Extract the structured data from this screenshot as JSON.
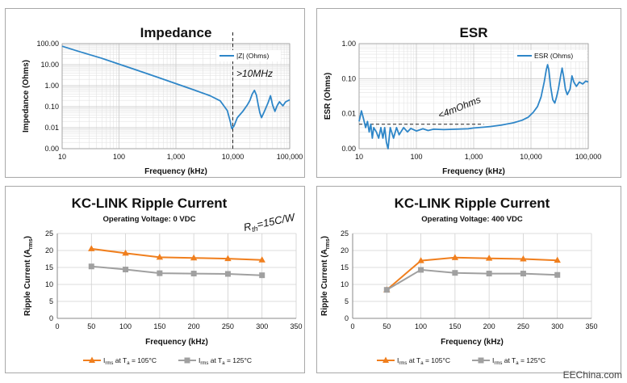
{
  "watermark": "EEChina.com",
  "chart_data": [
    {
      "type": "line",
      "title": "Impedance",
      "xlabel": "Frequency (kHz)",
      "ylabel": "Impedance (Ohms)",
      "x_scale": "log",
      "y_scale": "log",
      "xlim": [
        10,
        100000
      ],
      "ylim": [
        0.001,
        100
      ],
      "x_ticks": [
        10,
        100,
        1000,
        10000,
        100000
      ],
      "x_tick_labels": [
        "10",
        "100",
        "1,000",
        "10,000",
        "100,000"
      ],
      "y_ticks": [
        0.001,
        0.01,
        0.1,
        1,
        10,
        100
      ],
      "y_tick_labels": [
        "0.00",
        "0.01",
        "0.10",
        "1.00",
        "10.00",
        "100.00"
      ],
      "grid": true,
      "legend": "top-right",
      "series": [
        {
          "name": "|Z| (Ohms)",
          "color": "#2e86c8",
          "points": [
            [
              10,
              75
            ],
            [
              20,
              42
            ],
            [
              50,
              20
            ],
            [
              100,
              10.5
            ],
            [
              200,
              5.6
            ],
            [
              500,
              2.4
            ],
            [
              1000,
              1.25
            ],
            [
              2000,
              0.65
            ],
            [
              4000,
              0.33
            ],
            [
              6000,
              0.19
            ],
            [
              8000,
              0.065
            ],
            [
              9000,
              0.02
            ],
            [
              9600,
              0.009
            ],
            [
              10500,
              0.012
            ],
            [
              12000,
              0.03
            ],
            [
              15000,
              0.06
            ],
            [
              18000,
              0.12
            ],
            [
              20000,
              0.2
            ],
            [
              22000,
              0.4
            ],
            [
              24000,
              0.6
            ],
            [
              26000,
              0.35
            ],
            [
              28000,
              0.12
            ],
            [
              30000,
              0.05
            ],
            [
              32000,
              0.03
            ],
            [
              36000,
              0.06
            ],
            [
              42000,
              0.16
            ],
            [
              46000,
              0.33
            ],
            [
              50000,
              0.12
            ],
            [
              55000,
              0.06
            ],
            [
              60000,
              0.11
            ],
            [
              66000,
              0.17
            ],
            [
              70000,
              0.14
            ],
            [
              76000,
              0.11
            ],
            [
              85000,
              0.17
            ],
            [
              100000,
              0.21
            ]
          ]
        }
      ],
      "vline": 10000,
      "annotations": [
        ">10MHz"
      ]
    },
    {
      "type": "line",
      "title": "ESR",
      "xlabel": "Frequency (kHz)",
      "ylabel": "ESR (Ohms)",
      "x_scale": "log",
      "y_scale": "log",
      "xlim": [
        10,
        100000
      ],
      "ylim": [
        0.001,
        1
      ],
      "x_ticks": [
        10,
        100,
        1000,
        10000,
        100000
      ],
      "x_tick_labels": [
        "10",
        "100",
        "1,000",
        "10,000",
        "100,000"
      ],
      "y_ticks": [
        0.001,
        0.01,
        0.1,
        1
      ],
      "y_tick_labels": [
        "0.00",
        "0.01",
        "0.10",
        "1.00"
      ],
      "grid": true,
      "legend": "top-right",
      "series": [
        {
          "name": "ESR (Ohms)",
          "color": "#2e86c8",
          "points": [
            [
              10,
              0.006
            ],
            [
              11,
              0.012
            ],
            [
              12,
              0.007
            ],
            [
              13,
              0.004
            ],
            [
              14,
              0.006
            ],
            [
              15,
              0.003
            ],
            [
              16,
              0.005
            ],
            [
              17,
              0.002
            ],
            [
              18,
              0.004
            ],
            [
              20,
              0.003
            ],
            [
              22,
              0.002
            ],
            [
              24,
              0.004
            ],
            [
              26,
              0.002
            ],
            [
              28,
              0.004
            ],
            [
              30,
              0.0015
            ],
            [
              32,
              0.001
            ],
            [
              35,
              0.004
            ],
            [
              40,
              0.002
            ],
            [
              45,
              0.004
            ],
            [
              50,
              0.0025
            ],
            [
              60,
              0.004
            ],
            [
              70,
              0.003
            ],
            [
              80,
              0.0038
            ],
            [
              100,
              0.0032
            ],
            [
              130,
              0.0037
            ],
            [
              160,
              0.0033
            ],
            [
              200,
              0.0036
            ],
            [
              300,
              0.0035
            ],
            [
              500,
              0.0036
            ],
            [
              800,
              0.0037
            ],
            [
              1000,
              0.0039
            ],
            [
              1500,
              0.0041
            ],
            [
              2000,
              0.0043
            ],
            [
              3000,
              0.0047
            ],
            [
              5000,
              0.0055
            ],
            [
              7000,
              0.0065
            ],
            [
              9000,
              0.008
            ],
            [
              11000,
              0.011
            ],
            [
              13000,
              0.016
            ],
            [
              15000,
              0.03
            ],
            [
              17000,
              0.08
            ],
            [
              18500,
              0.18
            ],
            [
              19500,
              0.25
            ],
            [
              20500,
              0.18
            ],
            [
              22000,
              0.06
            ],
            [
              24000,
              0.025
            ],
            [
              26000,
              0.02
            ],
            [
              28000,
              0.03
            ],
            [
              30000,
              0.05
            ],
            [
              33000,
              0.12
            ],
            [
              35000,
              0.2
            ],
            [
              37000,
              0.12
            ],
            [
              40000,
              0.05
            ],
            [
              43000,
              0.035
            ],
            [
              48000,
              0.05
            ],
            [
              52000,
              0.12
            ],
            [
              56000,
              0.08
            ],
            [
              62000,
              0.06
            ],
            [
              70000,
              0.08
            ],
            [
              80000,
              0.07
            ],
            [
              90000,
              0.085
            ],
            [
              100000,
              0.08
            ]
          ]
        }
      ],
      "hline": {
        "y": 0.005,
        "x_from": 10,
        "x_to": 1500
      },
      "annotations": [
        "<4mOhms"
      ]
    },
    {
      "type": "line",
      "title": "KC-LINK Ripple Current",
      "subtitle": "Operating Voltage: 0 VDC",
      "xlabel": "Frequency (kHz)",
      "ylabel": "Ripple Current (Arms)",
      "xlim": [
        0,
        350
      ],
      "ylim": [
        0,
        25
      ],
      "x_ticks": [
        0,
        50,
        100,
        150,
        200,
        250,
        300,
        350
      ],
      "y_ticks": [
        0,
        5,
        10,
        15,
        20,
        25
      ],
      "grid": true,
      "legend": "bottom",
      "series": [
        {
          "name": "Irms at Ta = 105°C",
          "legend_parts": [
            "I",
            "rms",
            " at T",
            "a",
            " = 105°C"
          ],
          "color": "#f07f1e",
          "marker": "triangle",
          "x": [
            50,
            100,
            150,
            200,
            250,
            300
          ],
          "values": [
            20.5,
            19.2,
            18.0,
            17.8,
            17.6,
            17.2
          ]
        },
        {
          "name": "Irms at Ta = 125°C",
          "legend_parts": [
            "I",
            "rms",
            " at T",
            "a",
            " = 125°C"
          ],
          "color": "#a0a0a0",
          "marker": "square",
          "x": [
            50,
            100,
            150,
            200,
            250,
            300
          ],
          "values": [
            15.3,
            14.4,
            13.3,
            13.2,
            13.1,
            12.7
          ]
        }
      ],
      "annotations": [
        "Rth=15C/W"
      ]
    },
    {
      "type": "line",
      "title": "KC-LINK Ripple Current",
      "subtitle": "Operating Voltage: 400 VDC",
      "xlabel": "Frequency (kHz)",
      "ylabel": "Ripple Current (Arms)",
      "xlim": [
        0,
        350
      ],
      "ylim": [
        0,
        25
      ],
      "x_ticks": [
        0,
        50,
        100,
        150,
        200,
        250,
        300,
        350
      ],
      "y_ticks": [
        0,
        5,
        10,
        15,
        20,
        25
      ],
      "grid": true,
      "legend": "bottom",
      "series": [
        {
          "name": "Irms at Ta = 105°C",
          "legend_parts": [
            "I",
            "rms",
            " at T",
            "a",
            " = 105°C"
          ],
          "color": "#f07f1e",
          "marker": "triangle",
          "x": [
            50,
            100,
            150,
            200,
            250,
            300
          ],
          "values": [
            8.4,
            17.0,
            17.9,
            17.7,
            17.5,
            17.1
          ]
        },
        {
          "name": "Irms at Ta = 125°C",
          "legend_parts": [
            "I",
            "rms",
            " at T",
            "a",
            " = 125°C"
          ],
          "color": "#a0a0a0",
          "marker": "square",
          "x": [
            50,
            100,
            150,
            200,
            250,
            300
          ],
          "values": [
            8.4,
            14.3,
            13.4,
            13.2,
            13.2,
            12.8
          ]
        }
      ]
    }
  ]
}
